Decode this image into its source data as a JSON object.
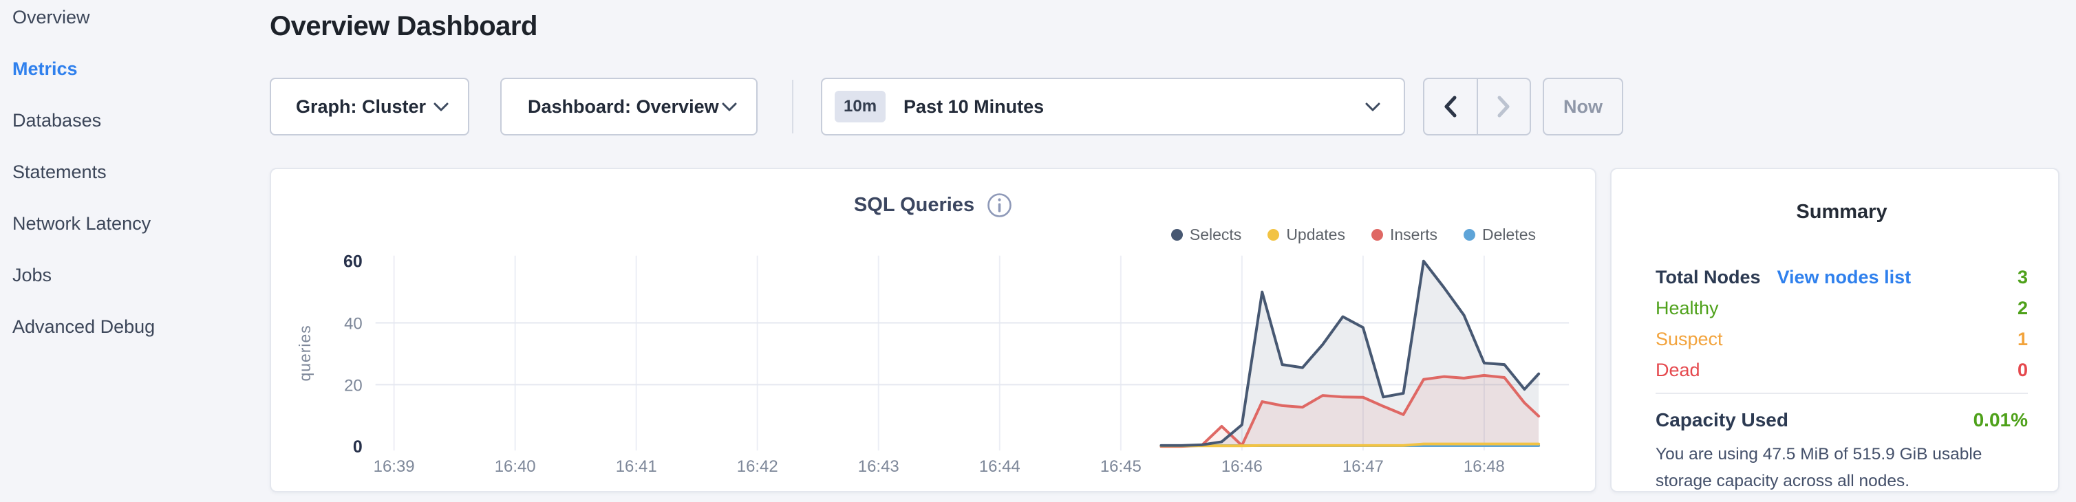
{
  "sidebar": {
    "items": [
      {
        "label": "Overview",
        "active": false
      },
      {
        "label": "Metrics",
        "active": true
      },
      {
        "label": "Databases",
        "active": false
      },
      {
        "label": "Statements",
        "active": false
      },
      {
        "label": "Network Latency",
        "active": false
      },
      {
        "label": "Jobs",
        "active": false
      },
      {
        "label": "Advanced Debug",
        "active": false
      }
    ]
  },
  "header": {
    "title": "Overview Dashboard"
  },
  "toolbar": {
    "graph_dropdown": "Graph: Cluster",
    "dashboard_dropdown": "Dashboard: Overview",
    "time_badge": "10m",
    "time_label": "Past 10 Minutes",
    "now_label": "Now"
  },
  "chart_data": {
    "type": "area",
    "title": "SQL Queries",
    "ylabel": "queries",
    "ylim": [
      0,
      60
    ],
    "grid": true,
    "legend_position": "top-right",
    "y_ticks": [
      {
        "v": 0,
        "label": "0",
        "strong": true
      },
      {
        "v": 20,
        "label": "20",
        "strong": false
      },
      {
        "v": 40,
        "label": "40",
        "strong": false
      },
      {
        "v": 60,
        "label": "60",
        "strong": true
      }
    ],
    "grid_y": [
      20,
      40
    ],
    "x_ticks": [
      {
        "t": 0,
        "label": "16:39"
      },
      {
        "t": 1,
        "label": "16:40"
      },
      {
        "t": 2,
        "label": "16:41"
      },
      {
        "t": 3,
        "label": "16:42"
      },
      {
        "t": 4,
        "label": "16:43"
      },
      {
        "t": 5,
        "label": "16:44"
      },
      {
        "t": 6,
        "label": "16:45"
      },
      {
        "t": 7,
        "label": "16:46"
      },
      {
        "t": 8,
        "label": "16:47"
      },
      {
        "t": 9,
        "label": "16:48"
      }
    ],
    "x_minutes_after_16_39": [
      6.333,
      6.5,
      6.667,
      6.833,
      7.0,
      7.167,
      7.333,
      7.5,
      7.667,
      7.833,
      8.0,
      8.167,
      8.333,
      8.5,
      8.667,
      8.833,
      9.0,
      9.167,
      9.333,
      9.45
    ],
    "series": [
      {
        "name": "Selects",
        "color": "#475872",
        "fill": "rgba(71,88,114,0.11)",
        "values": [
          0.3,
          0.3,
          0.5,
          1.5,
          7,
          50,
          26.5,
          25.5,
          33,
          42,
          38.5,
          16,
          17.2,
          60,
          51.5,
          42.5,
          27,
          26.5,
          18.5,
          23.5
        ]
      },
      {
        "name": "Updates",
        "color": "#f2c343",
        "fill": "none",
        "values": [
          0.2,
          0.2,
          0.2,
          0.2,
          0.2,
          0.3,
          0.3,
          0.3,
          0.3,
          0.3,
          0.3,
          0.3,
          0.3,
          0.8,
          0.8,
          0.8,
          0.8,
          0.8,
          0.8,
          0.8
        ]
      },
      {
        "name": "Inserts",
        "color": "#df6864",
        "fill": "rgba(224,104,100,0.10)",
        "values": [
          0,
          0,
          0.3,
          6.5,
          0.3,
          14.5,
          13.2,
          12.7,
          16.5,
          16,
          15.9,
          13,
          10.3,
          21.7,
          22.6,
          22.1,
          23,
          22.3,
          14.1,
          9.8
        ]
      },
      {
        "name": "Deletes",
        "color": "#5ea4d8",
        "fill": "none",
        "values": [
          0.25,
          0.25,
          0.25,
          0.25,
          0.25,
          0.25,
          0.25,
          0.25,
          0.25,
          0.25,
          0.25,
          0.25,
          0.25,
          0.25,
          0.25,
          0.25,
          0.25,
          0.25,
          0.25,
          0.25
        ]
      }
    ]
  },
  "summary": {
    "title": "Summary",
    "total_nodes_label": "Total Nodes",
    "view_nodes_link": "View nodes list",
    "total_nodes_value": "3",
    "rows": [
      {
        "label": "Healthy",
        "value": "2",
        "tone": "green"
      },
      {
        "label": "Suspect",
        "value": "1",
        "tone": "orange"
      },
      {
        "label": "Dead",
        "value": "0",
        "tone": "red"
      }
    ],
    "capacity_label": "Capacity Used",
    "capacity_value": "0.01%",
    "capacity_description": "You are using 47.5 MiB of 515.9 GiB usable storage capacity across all nodes.",
    "colors": {
      "green": "#4ea11a",
      "orange": "#f2a33c",
      "red": "#e5484d",
      "link": "#2f80ed"
    }
  }
}
